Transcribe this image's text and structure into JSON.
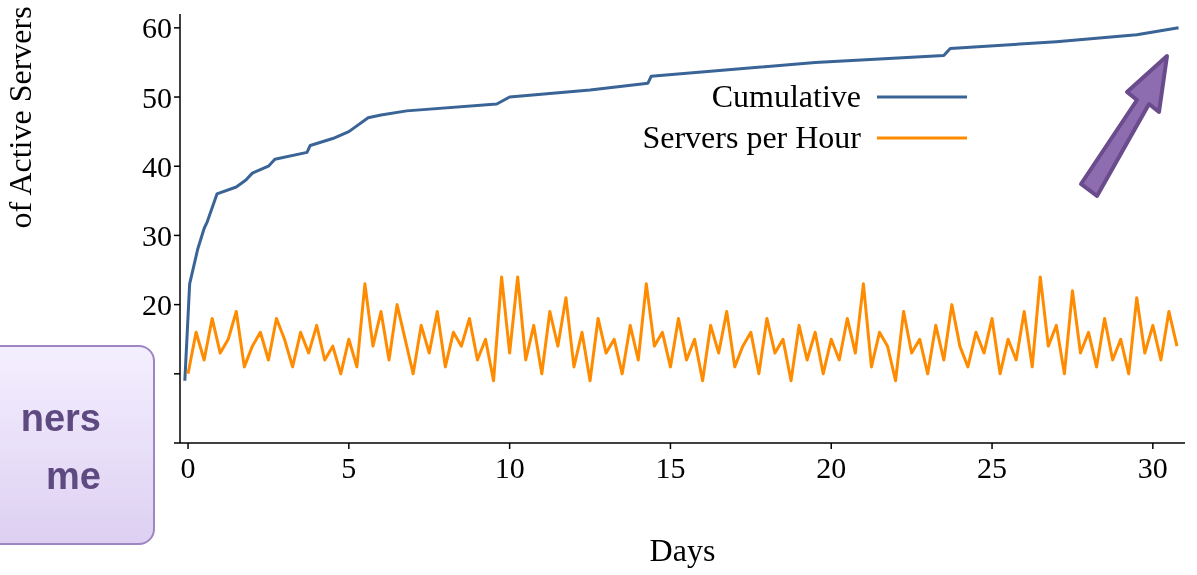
{
  "chart_data": {
    "type": "line",
    "xlabel": "Days",
    "ylabel": "of Active Servers",
    "annotations": [
      "ners\nme"
    ],
    "xlim": [
      -0.25,
      31
    ],
    "xticks": [
      0,
      5,
      10,
      15,
      20,
      25,
      30
    ],
    "ylim": [
      0,
      62
    ],
    "yticks": [
      {
        "value": 0,
        "label": null
      },
      {
        "value": 10,
        "label": null
      },
      20,
      30,
      40,
      50,
      60
    ],
    "legend": "top right",
    "marker": "none",
    "line_style": "solid",
    "series": [
      {
        "name": "Cumulative",
        "color": "#3a6496",
        "x": [
          -0.1,
          0.05,
          0.3,
          0.5,
          0.6,
          0.9,
          1.5,
          1.8,
          2,
          2.5,
          2.7,
          3.7,
          3.8,
          4.5,
          5,
          5.6,
          6,
          6.8,
          9.6,
          10,
          12.5,
          14.3,
          14.4,
          19.5,
          23.5,
          23.7,
          27,
          29.5,
          30.8
        ],
        "values": [
          9,
          23,
          28,
          31,
          32,
          36,
          37,
          38,
          39,
          40,
          41,
          42,
          43,
          44,
          45,
          47,
          47.4,
          48,
          49,
          50,
          51,
          52,
          53,
          55,
          56,
          57,
          58,
          59,
          60
        ]
      },
      {
        "name": "Servers per Hour",
        "color": "#ff8c00",
        "x": [
          0,
          0.25,
          0.5,
          0.75,
          1,
          1.25,
          1.5,
          1.75,
          2,
          2.25,
          2.5,
          2.75,
          3,
          3.25,
          3.5,
          3.75,
          4,
          4.25,
          4.5,
          4.75,
          5,
          5.25,
          5.5,
          5.75,
          6,
          6.25,
          6.5,
          6.75,
          7,
          7.25,
          7.5,
          7.75,
          8,
          8.25,
          8.5,
          8.75,
          9,
          9.25,
          9.5,
          9.75,
          10,
          10.25,
          10.5,
          10.75,
          11,
          11.25,
          11.5,
          11.75,
          12,
          12.25,
          12.5,
          12.75,
          13,
          13.25,
          13.5,
          13.75,
          14,
          14.25,
          14.5,
          14.75,
          15,
          15.25,
          15.5,
          15.75,
          16,
          16.25,
          16.5,
          16.75,
          17,
          17.25,
          17.5,
          17.75,
          18,
          18.25,
          18.5,
          18.75,
          19,
          19.25,
          19.5,
          19.75,
          20,
          20.25,
          20.5,
          20.75,
          21,
          21.25,
          21.5,
          21.75,
          22,
          22.25,
          22.5,
          22.75,
          23,
          23.25,
          23.5,
          23.75,
          24,
          24.25,
          24.5,
          24.75,
          25,
          25.25,
          25.5,
          25.75,
          26,
          26.25,
          26.5,
          26.75,
          27,
          27.25,
          27.5,
          27.75,
          28,
          28.25,
          28.5,
          28.75,
          29,
          29.25,
          29.5,
          29.75,
          30,
          30.25,
          30.5,
          30.75
        ],
        "values": [
          10,
          16,
          12,
          18,
          13,
          15,
          19,
          11,
          14,
          16,
          12,
          18,
          15,
          11,
          16,
          13,
          17,
          12,
          14,
          10,
          15,
          11,
          23,
          14,
          19,
          12,
          20,
          15,
          10,
          17,
          13,
          19,
          11,
          16,
          14,
          18,
          12,
          15,
          9,
          24,
          13,
          24,
          12,
          17,
          10,
          19,
          14,
          21,
          11,
          16,
          9,
          18,
          13,
          15,
          10,
          17,
          12,
          23,
          14,
          16,
          11,
          18,
          12,
          15,
          9,
          17,
          13,
          19,
          11,
          14,
          16,
          10,
          18,
          13,
          15,
          9,
          17,
          12,
          16,
          10,
          15,
          12,
          18,
          13,
          23,
          11,
          16,
          14,
          9,
          19,
          13,
          15,
          10,
          17,
          12,
          20,
          14,
          11,
          16,
          13,
          18,
          10,
          15,
          12,
          19,
          11,
          24,
          14,
          17,
          10,
          22,
          13,
          16,
          11,
          18,
          12,
          15,
          10,
          21,
          13,
          17,
          12,
          19,
          14
        ]
      }
    ]
  }
}
